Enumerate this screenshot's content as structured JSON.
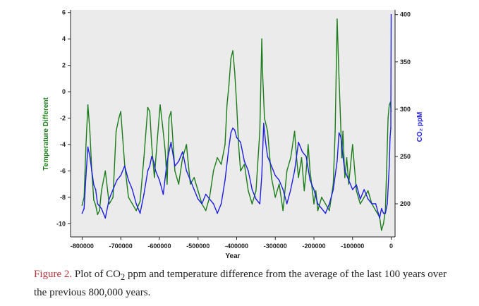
{
  "chart_data": {
    "type": "line",
    "title": "",
    "xlabel": "Year",
    "ylabel_left": "Temperature Different",
    "ylabel_right": "CO₂ ppM",
    "xlim": [
      -830000,
      10000
    ],
    "ylim_left": [
      -11,
      6.2
    ],
    "ylim_right": [
      165,
      405
    ],
    "x_ticks": [
      "-800000",
      "-700000",
      "-600000",
      "-500000",
      "-400000",
      "-300000",
      "-200000",
      "-100000",
      "0"
    ],
    "y_left_ticks": [
      "6",
      "4",
      "2",
      "0",
      "-2",
      "-4",
      "-6",
      "-8",
      "-10"
    ],
    "y_right_ticks": [
      "400",
      "350",
      "300",
      "250",
      "200"
    ],
    "grid": false,
    "legend": "none",
    "colors": {
      "temperature": "#1a7d1a",
      "co2": "#1f1fe0",
      "plot_bg": "#ebebeb"
    },
    "series": [
      {
        "name": "Temperature Different",
        "axis": "left",
        "x": [
          -800000,
          -795000,
          -790000,
          -785000,
          -780000,
          -775000,
          -770000,
          -765000,
          -760000,
          -755000,
          -750000,
          -740000,
          -730000,
          -720000,
          -712000,
          -705000,
          -700000,
          -695000,
          -690000,
          -680000,
          -670000,
          -660000,
          -650000,
          -640000,
          -630000,
          -625000,
          -620000,
          -613000,
          -605000,
          -598000,
          -592000,
          -585000,
          -580000,
          -575000,
          -570000,
          -560000,
          -550000,
          -540000,
          -530000,
          -525000,
          -520000,
          -510000,
          -500000,
          -490000,
          -480000,
          -470000,
          -460000,
          -450000,
          -440000,
          -430000,
          -425000,
          -420000,
          -415000,
          -410000,
          -405000,
          -400000,
          -395000,
          -390000,
          -380000,
          -370000,
          -360000,
          -350000,
          -340000,
          -335000,
          -333000,
          -328000,
          -320000,
          -310000,
          -300000,
          -290000,
          -280000,
          -270000,
          -260000,
          -250000,
          -245000,
          -240000,
          -232000,
          -225000,
          -220000,
          -215000,
          -210000,
          -200000,
          -195000,
          -190000,
          -180000,
          -170000,
          -160000,
          -150000,
          -145000,
          -140000,
          -135000,
          -130000,
          -128000,
          -125000,
          -120000,
          -115000,
          -110000,
          -100000,
          -90000,
          -80000,
          -70000,
          -60000,
          -50000,
          -40000,
          -30000,
          -25000,
          -20000,
          -15000,
          -12000,
          -8000,
          -5000,
          -2000,
          0
        ],
        "values": [
          -8.6,
          -8.0,
          -4.0,
          -1.0,
          -3.0,
          -6.0,
          -8.2,
          -8.6,
          -9.3,
          -9.0,
          -7.5,
          -6.0,
          -8.5,
          -8.0,
          -3.0,
          -2.0,
          -1.5,
          -3.5,
          -5.5,
          -8.0,
          -8.5,
          -9.0,
          -8.3,
          -5.0,
          -1.2,
          -1.5,
          -4.0,
          -6.5,
          -3.5,
          -1.0,
          -2.5,
          -4.5,
          -7.0,
          -2.0,
          -1.5,
          -6.0,
          -7.0,
          -5.0,
          -4.0,
          -5.5,
          -7.0,
          -6.5,
          -7.5,
          -8.5,
          -9.0,
          -8.0,
          -6.0,
          -5.0,
          -5.5,
          -4.0,
          -1.0,
          0.5,
          2.5,
          3.1,
          1.5,
          -1.0,
          -4.0,
          -6.0,
          -5.5,
          -7.5,
          -8.5,
          -7.5,
          -3.0,
          4.0,
          1.5,
          -2.0,
          -3.0,
          -6.5,
          -8.0,
          -7.0,
          -9.0,
          -6.0,
          -5.0,
          -3.0,
          -5.0,
          -6.5,
          -5.0,
          -7.5,
          -6.0,
          -4.0,
          -6.0,
          -8.5,
          -7.5,
          -9.0,
          -8.0,
          -8.5,
          -9.0,
          -7.0,
          -3.0,
          5.5,
          1.0,
          -3.0,
          -5.0,
          -3.0,
          -6.5,
          -5.0,
          -7.0,
          -4.0,
          -7.5,
          -8.5,
          -8.0,
          -7.5,
          -8.5,
          -9.0,
          -9.5,
          -10.5,
          -10.0,
          -9.0,
          -6.0,
          -2.0,
          -1.0,
          -0.8,
          -1.5
        ]
      },
      {
        "name": "CO₂ ppM",
        "axis": "right",
        "x": [
          -800000,
          -795000,
          -790000,
          -785000,
          -780000,
          -775000,
          -770000,
          -765000,
          -760000,
          -750000,
          -740000,
          -730000,
          -720000,
          -710000,
          -700000,
          -690000,
          -680000,
          -670000,
          -660000,
          -650000,
          -640000,
          -630000,
          -625000,
          -620000,
          -615000,
          -610000,
          -600000,
          -590000,
          -580000,
          -570000,
          -560000,
          -550000,
          -540000,
          -530000,
          -520000,
          -510000,
          -500000,
          -490000,
          -480000,
          -470000,
          -460000,
          -450000,
          -440000,
          -430000,
          -420000,
          -415000,
          -410000,
          -405000,
          -400000,
          -390000,
          -380000,
          -370000,
          -360000,
          -350000,
          -340000,
          -335000,
          -330000,
          -325000,
          -320000,
          -310000,
          -300000,
          -290000,
          -280000,
          -270000,
          -260000,
          -250000,
          -240000,
          -230000,
          -220000,
          -210000,
          -200000,
          -190000,
          -180000,
          -170000,
          -160000,
          -150000,
          -140000,
          -135000,
          -130000,
          -125000,
          -120000,
          -110000,
          -100000,
          -90000,
          -80000,
          -70000,
          -60000,
          -50000,
          -40000,
          -30000,
          -25000,
          -20000,
          -15000,
          -10000,
          -5000,
          -3000,
          -1000,
          0
        ],
        "values": [
          190,
          195,
          230,
          260,
          250,
          235,
          220,
          215,
          200,
          195,
          185,
          205,
          215,
          225,
          230,
          240,
          225,
          215,
          200,
          190,
          210,
          235,
          240,
          250,
          245,
          235,
          225,
          210,
          245,
          265,
          240,
          245,
          255,
          235,
          225,
          215,
          205,
          200,
          210,
          205,
          200,
          190,
          200,
          225,
          260,
          275,
          280,
          278,
          270,
          265,
          245,
          235,
          215,
          205,
          200,
          230,
          285,
          265,
          250,
          240,
          230,
          225,
          215,
          200,
          215,
          235,
          265,
          255,
          250,
          225,
          215,
          200,
          195,
          190,
          200,
          215,
          245,
          275,
          270,
          250,
          235,
          225,
          215,
          220,
          205,
          215,
          205,
          200,
          200,
          185,
          195,
          190,
          190,
          200,
          240,
          270,
          280,
          400
        ]
      }
    ]
  },
  "caption": {
    "label": "Figure 2.",
    "text_a": " Plot of CO",
    "subscript": "2",
    "text_b": " ppm and temperature difference from the average of the last 100 years over the previous 800,000 years."
  }
}
